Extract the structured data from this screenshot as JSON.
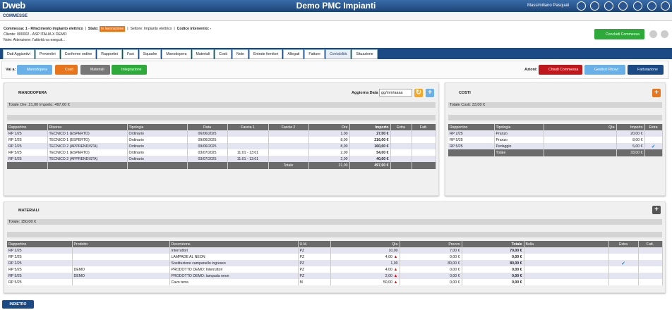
{
  "header": {
    "logo": "Dweb",
    "app_title": "Demo PMC Impianti",
    "user": "Massimiliano Pasquali"
  },
  "section": "COMMESSE",
  "info": {
    "commessa": "Commessa: 1 - Rifacimento impianto elettrico",
    "stato_label": "Stato:",
    "stato": "In lavorazione",
    "settore": "Settore: Impianto elettrico",
    "codice": "Codice intervento: -",
    "cliente": "Cliente: 000002 - ASP ITALIA X DEMO",
    "note": "Note: Attenzione: l'attività va eseguit..."
  },
  "conclude_button": "Concludi Commessa",
  "tabs": [
    "Dati Aggiuntivi",
    "Preventivi",
    "Conferme ordine",
    "Rapportini",
    "Fasi",
    "Squadre",
    "Manodopera",
    "Materiali",
    "Costi",
    "Note",
    "Entrate fornitori",
    "Allegati",
    "Fatture",
    "Contabilità",
    "Situazione"
  ],
  "active_tab": 13,
  "toolbar": {
    "goto_label": "Vai a:",
    "goto": [
      "Manodopera",
      "Costi",
      "Materiali",
      "Integrazione"
    ],
    "actions_label": "Azioni:",
    "actions": [
      "Chiudi Commessa",
      "Gestisci Ricavi",
      "Fatturazione"
    ]
  },
  "manodopera": {
    "title": "MANODOPERA",
    "update_label": "Aggiorna Data",
    "date_placeholder": "gg/mm/aaaa",
    "summary": "Totale Ore: 21,00  Importo: 497,00 €",
    "columns": [
      "Rapportino",
      "Risorsa",
      "Tipologia",
      "Data",
      "Fascia 1",
      "Fascia 2",
      "Ore",
      "Importo",
      "Extra",
      "Fatt."
    ],
    "rows": [
      [
        "RP 1/25",
        "TECNICO 1 (ESPERTO)",
        "Ordinario",
        "06/06/2025",
        null,
        null,
        "1,00",
        "27,00 €",
        null,
        null
      ],
      [
        "RP 2/25",
        "TECNICO 1 (ESPERTO)",
        "Ordinario",
        "09/06/2025",
        null,
        null,
        "8,00",
        "216,00 €",
        null,
        null
      ],
      [
        "RP 2/25",
        "TECNICO 2 (APPRENDISTA)",
        "Ordinario",
        "09/06/2025",
        null,
        null,
        "8,00",
        "160,00 €",
        null,
        null
      ],
      [
        "RP 5/25",
        "TECNICO 1 (ESPERTO)",
        "Ordinario",
        "03/07/2025",
        "11:01 - 13:01",
        null,
        "2,00",
        "54,00 €",
        null,
        null
      ],
      [
        "RP 5/25",
        "TECNICO 2 (APPRENDISTA)",
        "Ordinario",
        "03/07/2025",
        "11:01 - 13:01",
        null,
        "2,00",
        "40,00 €",
        null,
        null
      ]
    ],
    "footer": [
      null,
      null,
      null,
      null,
      null,
      "Totale",
      "21,00",
      "497,00 €",
      null,
      null
    ]
  },
  "costi": {
    "title": "COSTI",
    "summary": "Totale Costi: 33,00 €",
    "columns": [
      "Rapportino",
      "Tipologia",
      "Qta",
      "Importo",
      "Extra",
      "Fatt."
    ],
    "rows": [
      [
        "RP 2/25",
        "Pranzo",
        null,
        "20,00 €",
        null,
        null
      ],
      [
        "RP 5/25",
        "Pranzo",
        null,
        "8,00 €",
        null,
        null
      ],
      [
        "RP 5/25",
        "Pedaggio",
        null,
        "5,00 €",
        null,
        null
      ]
    ],
    "extra_checked": [
      false,
      false,
      true
    ],
    "footer": [
      null,
      "Totale",
      null,
      "33,00 €",
      null,
      null
    ]
  },
  "materiali": {
    "title": "MATERIALI",
    "summary": "Totale: 150,00 €",
    "columns": [
      "Rapportino",
      "Prodotto",
      "Descrizione",
      "U.M.",
      "Qta",
      "Prezzo",
      "Totale",
      "Bolla",
      "Extra",
      "Fatt."
    ],
    "rows": [
      [
        "RP 2/25",
        null,
        "Interruttori",
        "PZ",
        "10,00",
        "7,00 €",
        "70,00 €",
        null,
        null,
        null
      ],
      [
        "RP 2/25",
        null,
        "LAMPADE AL NEON",
        "PZ",
        "4,00",
        "0,00 €",
        "0,00 €",
        null,
        null,
        null
      ],
      [
        "RP 2/25",
        null,
        "Sostituzione campanello ingresso",
        "PZ",
        "1,00",
        "80,00 €",
        "80,00 €",
        null,
        null,
        null
      ],
      [
        "RP 5/25",
        "DEMO",
        "PRODOTTO DEMO: Interruttori",
        "PZ",
        "4,00",
        "0,00 €",
        "0,00 €",
        null,
        null,
        null
      ],
      [
        "RP 5/25",
        "DEMO",
        "PRODOTTO DEMO: lampada neon",
        "PZ",
        "2,00",
        "0,00 €",
        "0,00 €",
        null,
        null,
        null
      ],
      [
        "RP 5/25",
        null,
        "Cavo terra",
        "M",
        "50,00",
        "0,00 €",
        "0,00 €",
        null,
        null,
        null
      ]
    ],
    "warning": [
      false,
      true,
      false,
      true,
      true,
      true
    ],
    "extra_checked": [
      false,
      false,
      true,
      false,
      false,
      false
    ]
  },
  "back_button": "INDIETRO"
}
